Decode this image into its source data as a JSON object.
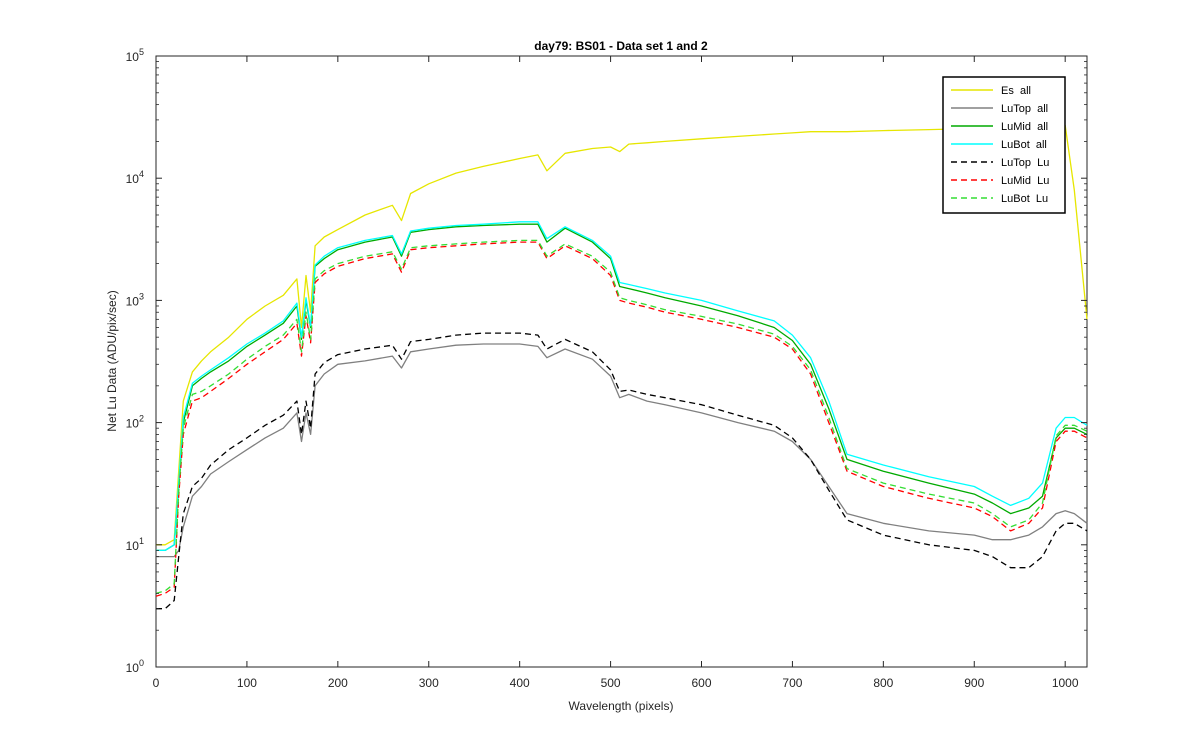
{
  "chart_data": {
    "type": "line",
    "title": "day79: BS01 - Data set 1 and 2",
    "xlabel": "Wavelength (pixels)",
    "ylabel": "Net Lu Data (ADU/pix/sec)",
    "xlim": [
      0,
      1024
    ],
    "ylim": [
      1,
      100000
    ],
    "yscale": "log",
    "grid": false,
    "legend_position": "top-right",
    "x_ticks": [
      "0",
      "100",
      "200",
      "300",
      "400",
      "500",
      "600",
      "700",
      "800",
      "900",
      "1000"
    ],
    "y_ticks": [
      {
        "base": "10",
        "exp": "0"
      },
      {
        "base": "10",
        "exp": "1"
      },
      {
        "base": "10",
        "exp": "2"
      },
      {
        "base": "10",
        "exp": "3"
      },
      {
        "base": "10",
        "exp": "4"
      },
      {
        "base": "10",
        "exp": "5"
      }
    ],
    "x": [
      0,
      10,
      20,
      25,
      30,
      40,
      50,
      60,
      80,
      100,
      120,
      140,
      155,
      160,
      165,
      170,
      175,
      185,
      200,
      230,
      260,
      270,
      280,
      300,
      330,
      360,
      400,
      420,
      430,
      450,
      480,
      500,
      510,
      520,
      540,
      560,
      600,
      640,
      680,
      700,
      720,
      740,
      760,
      800,
      850,
      900,
      920,
      940,
      960,
      975,
      990,
      1000,
      1010,
      1024
    ],
    "series": [
      {
        "name": "Es  all",
        "color": "#e6e600",
        "dash": "solid",
        "values": [
          10,
          10,
          11,
          40,
          150,
          260,
          320,
          380,
          500,
          700,
          900,
          1100,
          1500,
          600,
          1600,
          800,
          2800,
          3300,
          3800,
          5000,
          6000,
          4500,
          7500,
          9000,
          11000,
          12500,
          14500,
          15500,
          11500,
          16000,
          17500,
          18000,
          16500,
          19000,
          19500,
          20000,
          21000,
          22000,
          23000,
          23500,
          24000,
          24000,
          24000,
          24500,
          25000,
          25500,
          25500,
          26000,
          26500,
          27000,
          27500,
          27000,
          8000,
          700
        ]
      },
      {
        "name": "LuTop  all",
        "color": "#808080",
        "dash": "solid",
        "values": [
          8,
          8,
          8,
          9,
          14,
          25,
          30,
          38,
          48,
          60,
          75,
          90,
          120,
          70,
          120,
          80,
          200,
          250,
          300,
          320,
          350,
          280,
          380,
          400,
          430,
          440,
          440,
          420,
          340,
          400,
          330,
          240,
          160,
          170,
          150,
          140,
          120,
          100,
          85,
          70,
          50,
          30,
          18,
          15,
          13,
          12,
          11,
          11,
          12,
          14,
          18,
          19,
          18,
          15
        ]
      },
      {
        "name": "LuMid  all",
        "color": "#00aa00",
        "dash": "solid",
        "values": [
          9,
          9,
          10,
          30,
          100,
          200,
          230,
          260,
          320,
          420,
          520,
          650,
          900,
          480,
          1000,
          600,
          1900,
          2200,
          2600,
          3000,
          3300,
          2300,
          3600,
          3800,
          4000,
          4100,
          4200,
          4200,
          3000,
          3900,
          3000,
          2200,
          1300,
          1250,
          1150,
          1050,
          900,
          750,
          600,
          470,
          300,
          130,
          50,
          40,
          32,
          26,
          22,
          18,
          20,
          25,
          75,
          90,
          90,
          80
        ]
      },
      {
        "name": "LuBot  all",
        "color": "#00ffff",
        "dash": "solid",
        "values": [
          9,
          9,
          10,
          32,
          110,
          210,
          240,
          270,
          340,
          440,
          540,
          680,
          950,
          500,
          1050,
          620,
          1950,
          2300,
          2700,
          3100,
          3400,
          2400,
          3700,
          3900,
          4100,
          4200,
          4400,
          4400,
          3200,
          4000,
          3100,
          2300,
          1400,
          1350,
          1250,
          1150,
          1000,
          820,
          680,
          520,
          340,
          150,
          55,
          45,
          36,
          30,
          25,
          21,
          24,
          32,
          90,
          110,
          110,
          95
        ]
      },
      {
        "name": "LuTop  Lu",
        "color": "#000000",
        "dash": "dashed",
        "values": [
          3,
          3,
          3.5,
          8,
          18,
          30,
          35,
          45,
          60,
          75,
          95,
          115,
          150,
          80,
          150,
          90,
          250,
          310,
          360,
          400,
          430,
          330,
          460,
          480,
          520,
          540,
          540,
          520,
          400,
          480,
          380,
          270,
          180,
          185,
          170,
          160,
          140,
          115,
          95,
          75,
          50,
          28,
          16,
          12,
          10,
          9,
          8,
          6.5,
          6.5,
          8,
          13,
          15,
          15,
          13
        ]
      },
      {
        "name": "LuMid  Lu",
        "color": "#ff0000",
        "dash": "dashed",
        "values": [
          3.8,
          4,
          4.5,
          25,
          80,
          150,
          160,
          180,
          230,
          300,
          380,
          480,
          650,
          350,
          750,
          450,
          1400,
          1650,
          1900,
          2200,
          2400,
          1700,
          2600,
          2700,
          2800,
          2900,
          3000,
          3000,
          2200,
          2800,
          2200,
          1600,
          1000,
          950,
          880,
          800,
          700,
          600,
          500,
          400,
          250,
          100,
          40,
          30,
          24,
          20,
          17,
          13,
          15,
          20,
          70,
          85,
          85,
          75
        ]
      },
      {
        "name": "LuBot  Lu",
        "color": "#33dd33",
        "dash": "dashed",
        "values": [
          4,
          4.2,
          4.8,
          27,
          90,
          170,
          180,
          200,
          250,
          330,
          420,
          520,
          700,
          380,
          800,
          480,
          1500,
          1750,
          2000,
          2300,
          2500,
          1800,
          2700,
          2800,
          2900,
          3000,
          3100,
          3100,
          2300,
          2900,
          2300,
          1700,
          1050,
          1000,
          920,
          840,
          740,
          640,
          530,
          420,
          270,
          110,
          42,
          32,
          26,
          22,
          18,
          14,
          16,
          22,
          78,
          95,
          95,
          85
        ]
      }
    ]
  }
}
